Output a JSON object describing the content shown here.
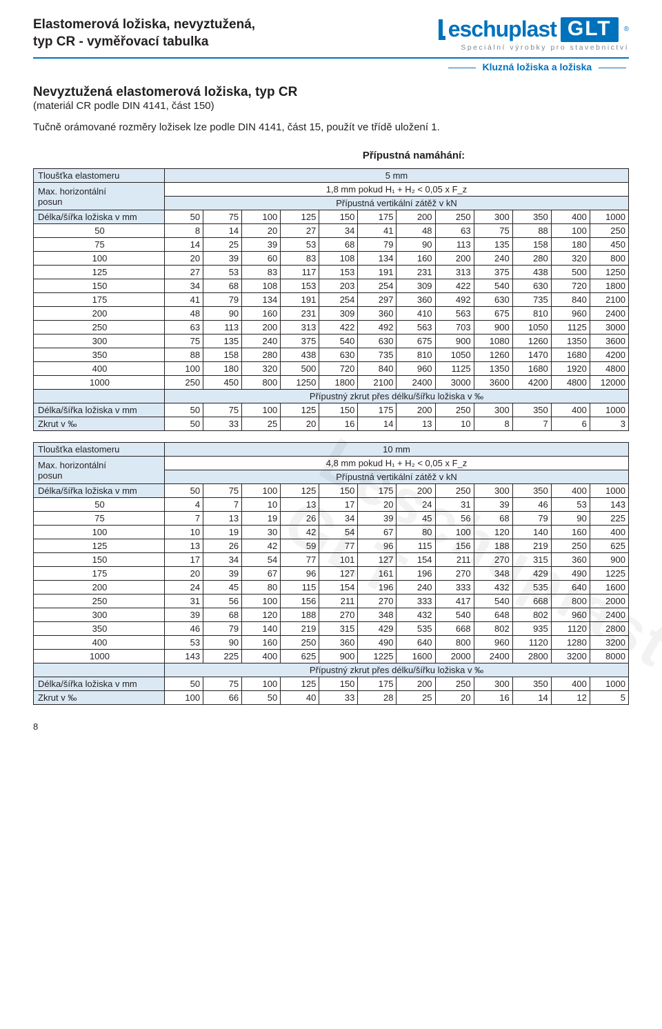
{
  "header": {
    "title1": "Elastomerová ložiska, nevyztužená,",
    "title2": "typ CR - vyměřovací tabulka",
    "logo_brand": "eschuplast",
    "logo_glt": "GLT",
    "logo_tagline": "Speciální výrobky pro stavebnictví",
    "section_tag": "Kluzná ložiska a ložiska"
  },
  "intro": {
    "h1": "Nevyztužená elastomerová ložiska, typ CR",
    "h1_note": "(materiál CR podle DIN 4141, část 150)",
    "p": "Tučně orámované rozměry ložisek lze podle DIN 4141, část 15, použít ve třídě uložení 1.",
    "block_title": "Přípustná namáhání:"
  },
  "colors": {
    "brand": "#0072bc",
    "header_bg": "#dbe9f4",
    "text": "#231f20",
    "grid": "#231f20",
    "bg": "#ffffff"
  },
  "labels": {
    "thickness": "Tloušťka elastomeru",
    "maxh": "Max. horizontální posun",
    "vload": "Přípustná vertikální zátěž v kN",
    "dim": "Délka/šířka ložiska v mm",
    "twist": "Přípustný zkrut přes délku/šířku ložiska v ‰",
    "twist_row": "Zkrut v  ‰"
  },
  "t5": {
    "thickness": "5 mm",
    "maxh": "1,8 mm pokud H₁ + H₂ < 0,05 x F_z",
    "cols": [
      50,
      75,
      100,
      125,
      150,
      175,
      200,
      250,
      300,
      350,
      400,
      1000
    ],
    "rows": [
      {
        "k": 50,
        "v": [
          8,
          14,
          20,
          27,
          34,
          41,
          48,
          63,
          75,
          88,
          100,
          250
        ]
      },
      {
        "k": 75,
        "v": [
          14,
          25,
          39,
          53,
          68,
          79,
          90,
          113,
          135,
          158,
          180,
          450
        ]
      },
      {
        "k": 100,
        "v": [
          20,
          39,
          60,
          83,
          108,
          134,
          160,
          200,
          240,
          280,
          320,
          800
        ]
      },
      {
        "k": 125,
        "v": [
          27,
          53,
          83,
          117,
          153,
          191,
          231,
          313,
          375,
          438,
          500,
          1250
        ]
      },
      {
        "k": 150,
        "v": [
          34,
          68,
          108,
          153,
          203,
          254,
          309,
          422,
          540,
          630,
          720,
          1800
        ]
      },
      {
        "k": 175,
        "v": [
          41,
          79,
          134,
          191,
          254,
          297,
          360,
          492,
          630,
          735,
          840,
          2100
        ]
      },
      {
        "k": 200,
        "v": [
          48,
          90,
          160,
          231,
          309,
          360,
          410,
          563,
          675,
          810,
          960,
          2400
        ]
      },
      {
        "k": 250,
        "v": [
          63,
          113,
          200,
          313,
          422,
          492,
          563,
          703,
          900,
          1050,
          1125,
          3000
        ]
      },
      {
        "k": 300,
        "v": [
          75,
          135,
          240,
          375,
          540,
          630,
          675,
          900,
          1080,
          1260,
          1350,
          3600
        ]
      },
      {
        "k": 350,
        "v": [
          88,
          158,
          280,
          438,
          630,
          735,
          810,
          1050,
          1260,
          1470,
          1680,
          4200
        ]
      },
      {
        "k": 400,
        "v": [
          100,
          180,
          320,
          500,
          720,
          840,
          960,
          1125,
          1350,
          1680,
          1920,
          4800
        ]
      },
      {
        "k": 1000,
        "v": [
          250,
          450,
          800,
          1250,
          1800,
          2100,
          2400,
          3000,
          3600,
          4200,
          4800,
          12000
        ]
      }
    ],
    "twist_cols": [
      50,
      75,
      100,
      125,
      150,
      175,
      200,
      250,
      300,
      350,
      400,
      1000
    ],
    "twist_vals": [
      50,
      33,
      25,
      20,
      16,
      14,
      13,
      10,
      8,
      7,
      6,
      3
    ]
  },
  "t10": {
    "thickness": "10 mm",
    "maxh": "4,8 mm pokud H₁ + H₂ < 0,05 x F_z",
    "cols": [
      50,
      75,
      100,
      125,
      150,
      175,
      200,
      250,
      300,
      350,
      400,
      1000
    ],
    "rows": [
      {
        "k": 50,
        "v": [
          4,
          7,
          10,
          13,
          17,
          20,
          24,
          31,
          39,
          46,
          53,
          143
        ]
      },
      {
        "k": 75,
        "v": [
          7,
          13,
          19,
          26,
          34,
          39,
          45,
          56,
          68,
          79,
          90,
          225
        ]
      },
      {
        "k": 100,
        "v": [
          10,
          19,
          30,
          42,
          54,
          67,
          80,
          100,
          120,
          140,
          160,
          400
        ]
      },
      {
        "k": 125,
        "v": [
          13,
          26,
          42,
          59,
          77,
          96,
          115,
          156,
          188,
          219,
          250,
          625
        ]
      },
      {
        "k": 150,
        "v": [
          17,
          34,
          54,
          77,
          101,
          127,
          154,
          211,
          270,
          315,
          360,
          900
        ]
      },
      {
        "k": 175,
        "v": [
          20,
          39,
          67,
          96,
          127,
          161,
          196,
          270,
          348,
          429,
          490,
          1225
        ]
      },
      {
        "k": 200,
        "v": [
          24,
          45,
          80,
          115,
          154,
          196,
          240,
          333,
          432,
          535,
          640,
          1600
        ]
      },
      {
        "k": 250,
        "v": [
          31,
          56,
          100,
          156,
          211,
          270,
          333,
          417,
          540,
          668,
          800,
          2000
        ]
      },
      {
        "k": 300,
        "v": [
          39,
          68,
          120,
          188,
          270,
          348,
          432,
          540,
          648,
          802,
          960,
          2400
        ]
      },
      {
        "k": 350,
        "v": [
          46,
          79,
          140,
          219,
          315,
          429,
          535,
          668,
          802,
          935,
          1120,
          2800
        ]
      },
      {
        "k": 400,
        "v": [
          53,
          90,
          160,
          250,
          360,
          490,
          640,
          800,
          960,
          1120,
          1280,
          3200
        ]
      },
      {
        "k": 1000,
        "v": [
          143,
          225,
          400,
          625,
          900,
          1225,
          1600,
          2000,
          2400,
          2800,
          3200,
          8000
        ]
      }
    ],
    "twist_cols": [
      50,
      75,
      100,
      125,
      150,
      175,
      200,
      250,
      300,
      350,
      400,
      1000
    ],
    "twist_vals": [
      100,
      66,
      50,
      40,
      33,
      28,
      25,
      20,
      16,
      14,
      12,
      5
    ]
  },
  "watermark": "Leschuplast GLT",
  "pagenum": "8"
}
